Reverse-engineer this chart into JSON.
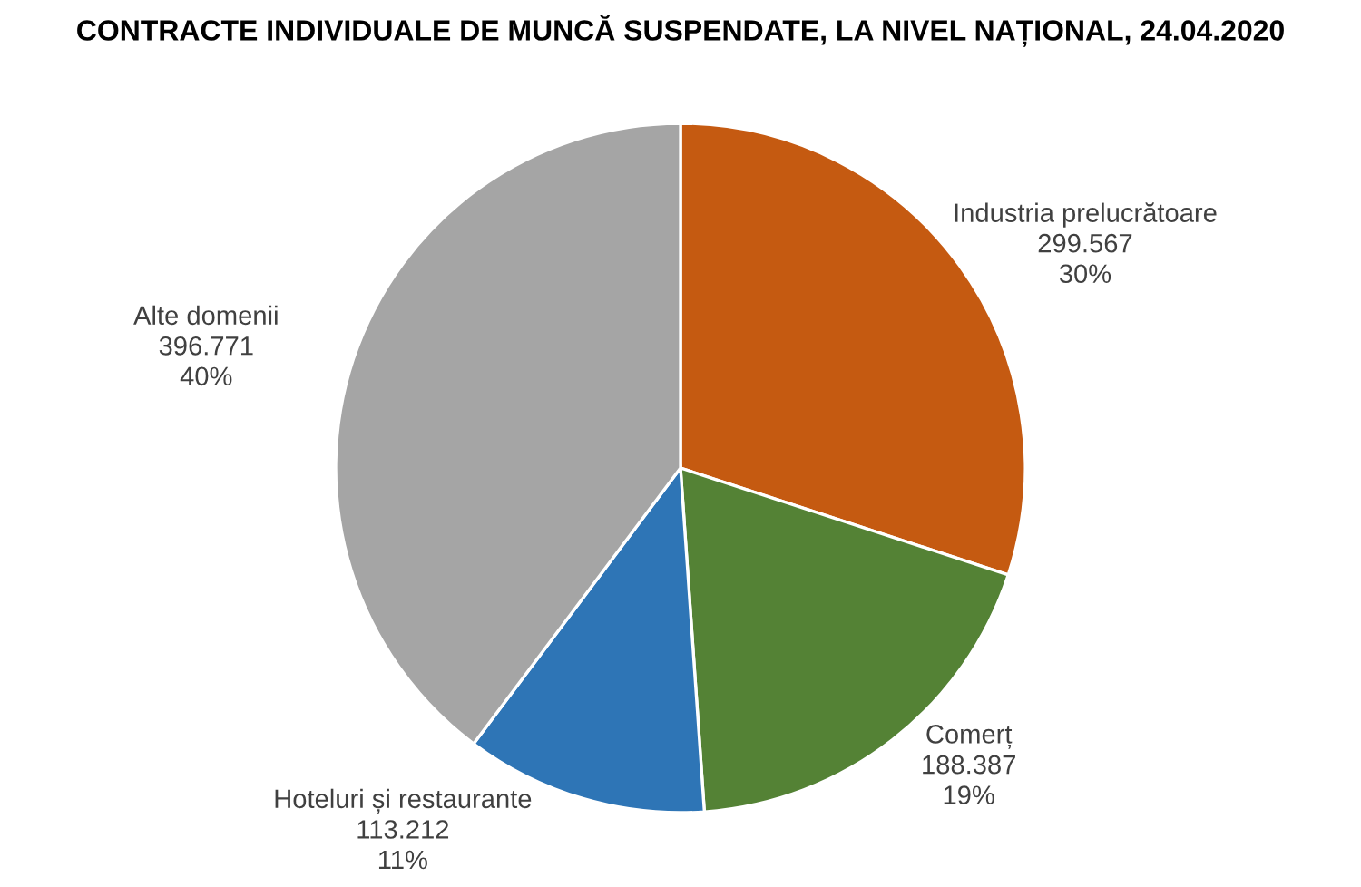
{
  "chart_data": {
    "type": "pie",
    "title": "CONTRACTE INDIVIDUALE DE MUNCĂ SUSPENDATE, LA NIVEL NAȚIONAL, 24.04.2020",
    "categories": [
      "Industria prelucrătoare",
      "Comerț",
      "Hoteluri și restaurante",
      "Alte domenii"
    ],
    "values": [
      299567,
      188387,
      113212,
      396771
    ],
    "value_labels": [
      "299.567\n30%",
      "188.387\n19%",
      "113.212\n11%",
      "396.771\n40%"
    ],
    "colors": [
      "#c55a11",
      "#548235",
      "#2e75b6",
      "#a5a5a5"
    ],
    "legend": false
  }
}
